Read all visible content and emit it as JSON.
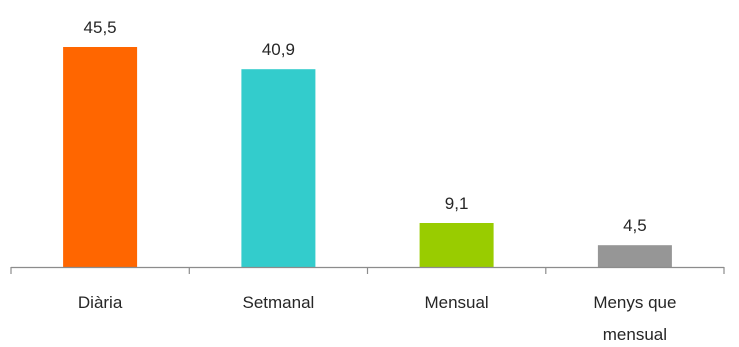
{
  "chart_data": {
    "type": "bar",
    "categories": [
      [
        "Diària"
      ],
      [
        "Setmanal"
      ],
      [
        "Mensual"
      ],
      [
        "Menys que",
        "mensual"
      ]
    ],
    "values": [
      45.5,
      40.9,
      9.1,
      4.5
    ],
    "value_labels": [
      "45,5",
      "40,9",
      "9,1",
      "4,5"
    ],
    "colors": [
      "#ff6600",
      "#33cccc",
      "#99cc00",
      "#969696"
    ],
    "axis_color": "#8c8c8c",
    "title": "",
    "xlabel": "",
    "ylabel": "",
    "ylim": [
      0,
      50
    ],
    "grid": false,
    "legend": "none"
  }
}
